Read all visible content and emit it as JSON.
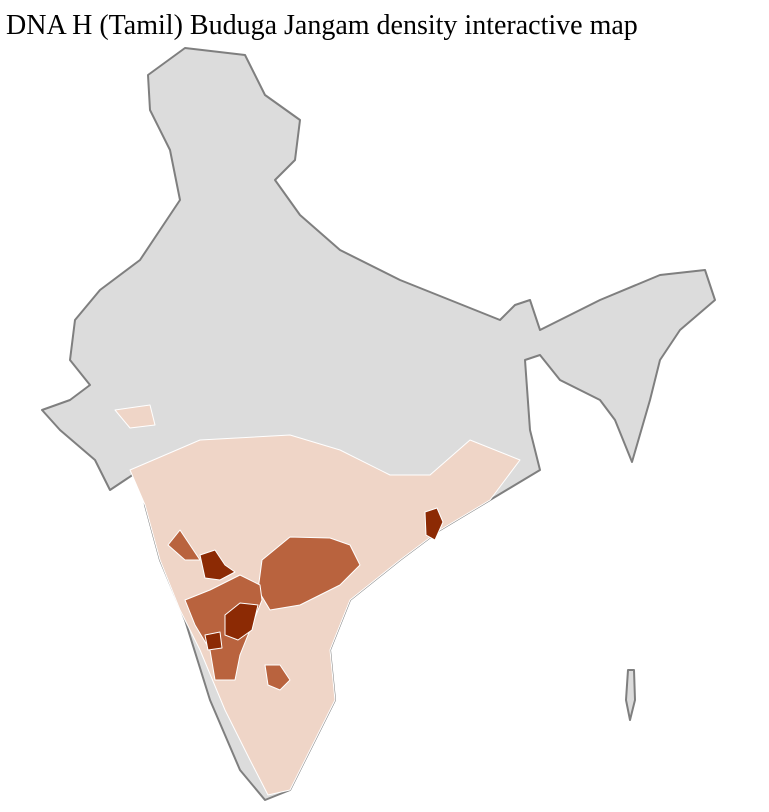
{
  "title": "DNA H (Tamil) Buduga Jangam density interactive map",
  "colors": {
    "no_data": "#dcdcdc",
    "low": "#efd5c7",
    "medium": "#b9633e",
    "high": "#8c2a04",
    "district_border": "#ffffff",
    "state_border": "#7f7f7f"
  }
}
